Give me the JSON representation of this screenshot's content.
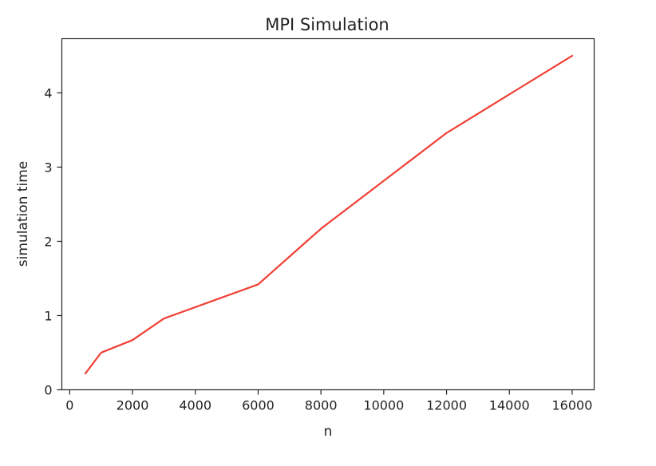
{
  "chart_data": {
    "type": "line",
    "title": "MPI Simulation",
    "xlabel": "n",
    "ylabel": "simulation time",
    "xlim": [
      -250,
      16700
    ],
    "ylim": [
      0,
      4.73
    ],
    "xticks": [
      0,
      2000,
      4000,
      6000,
      8000,
      10000,
      12000,
      14000,
      16000
    ],
    "yticks": [
      0,
      1,
      2,
      3,
      4
    ],
    "grid": false,
    "series": [
      {
        "color": "#f04035",
        "x": [
          500,
          1000,
          2000,
          3000,
          6000,
          8000,
          12000,
          16000
        ],
        "y": [
          0.22,
          0.5,
          0.67,
          0.96,
          1.42,
          2.17,
          3.46,
          4.5
        ]
      }
    ]
  }
}
